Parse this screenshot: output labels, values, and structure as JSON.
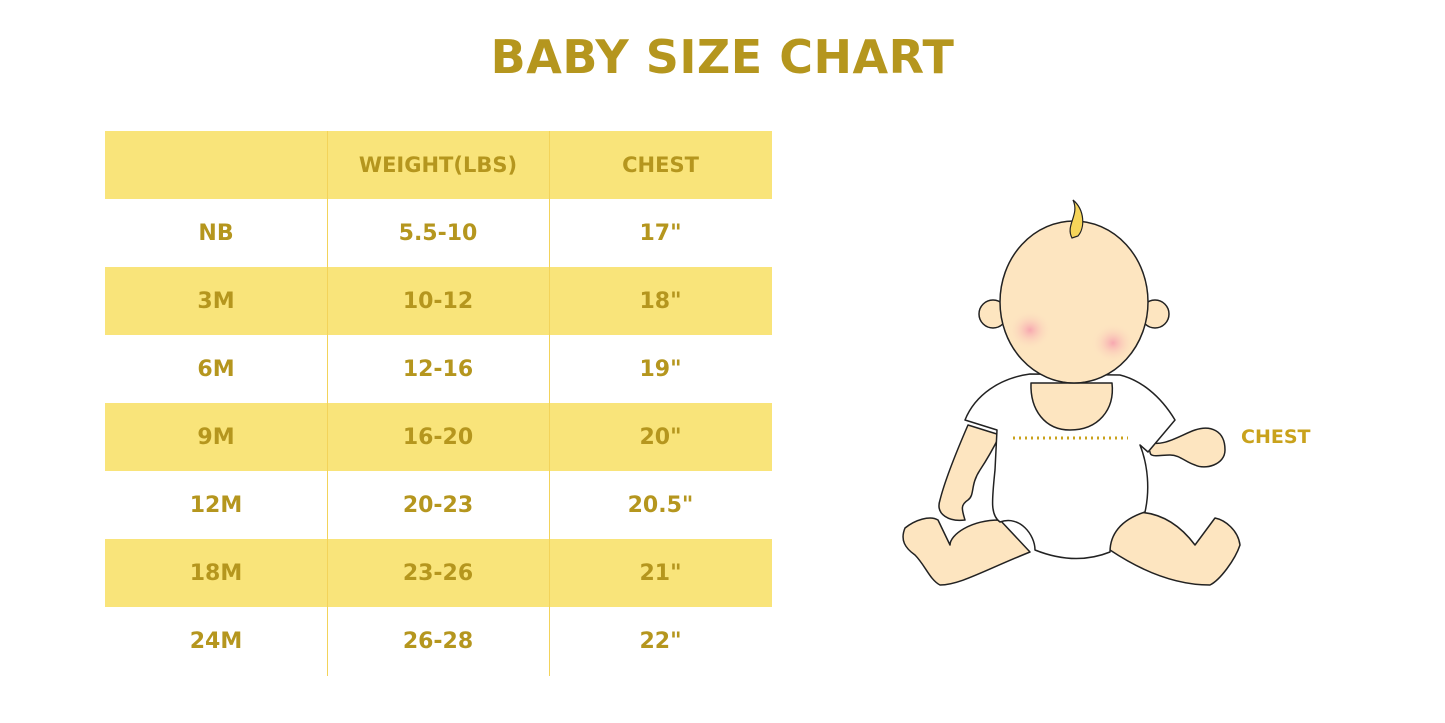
{
  "title": "BABY SIZE CHART",
  "table": {
    "headers": [
      "",
      "WEIGHT(LBS)",
      "CHEST"
    ],
    "rows": [
      [
        "NB",
        "5.5-10",
        "17\""
      ],
      [
        "3M",
        "10-12",
        "18\""
      ],
      [
        "6M",
        "12-16",
        "19\""
      ],
      [
        "9M",
        "16-20",
        "20\""
      ],
      [
        "12M",
        "20-23",
        "20.5\""
      ],
      [
        "18M",
        "23-26",
        "21\""
      ],
      [
        "24M",
        "26-28",
        "22\""
      ]
    ]
  },
  "illustration": {
    "chest_label": "CHEST"
  },
  "colors": {
    "accent_text": "#b5961e",
    "stripe": "#f9e47a",
    "skin": "#fde5c0"
  }
}
